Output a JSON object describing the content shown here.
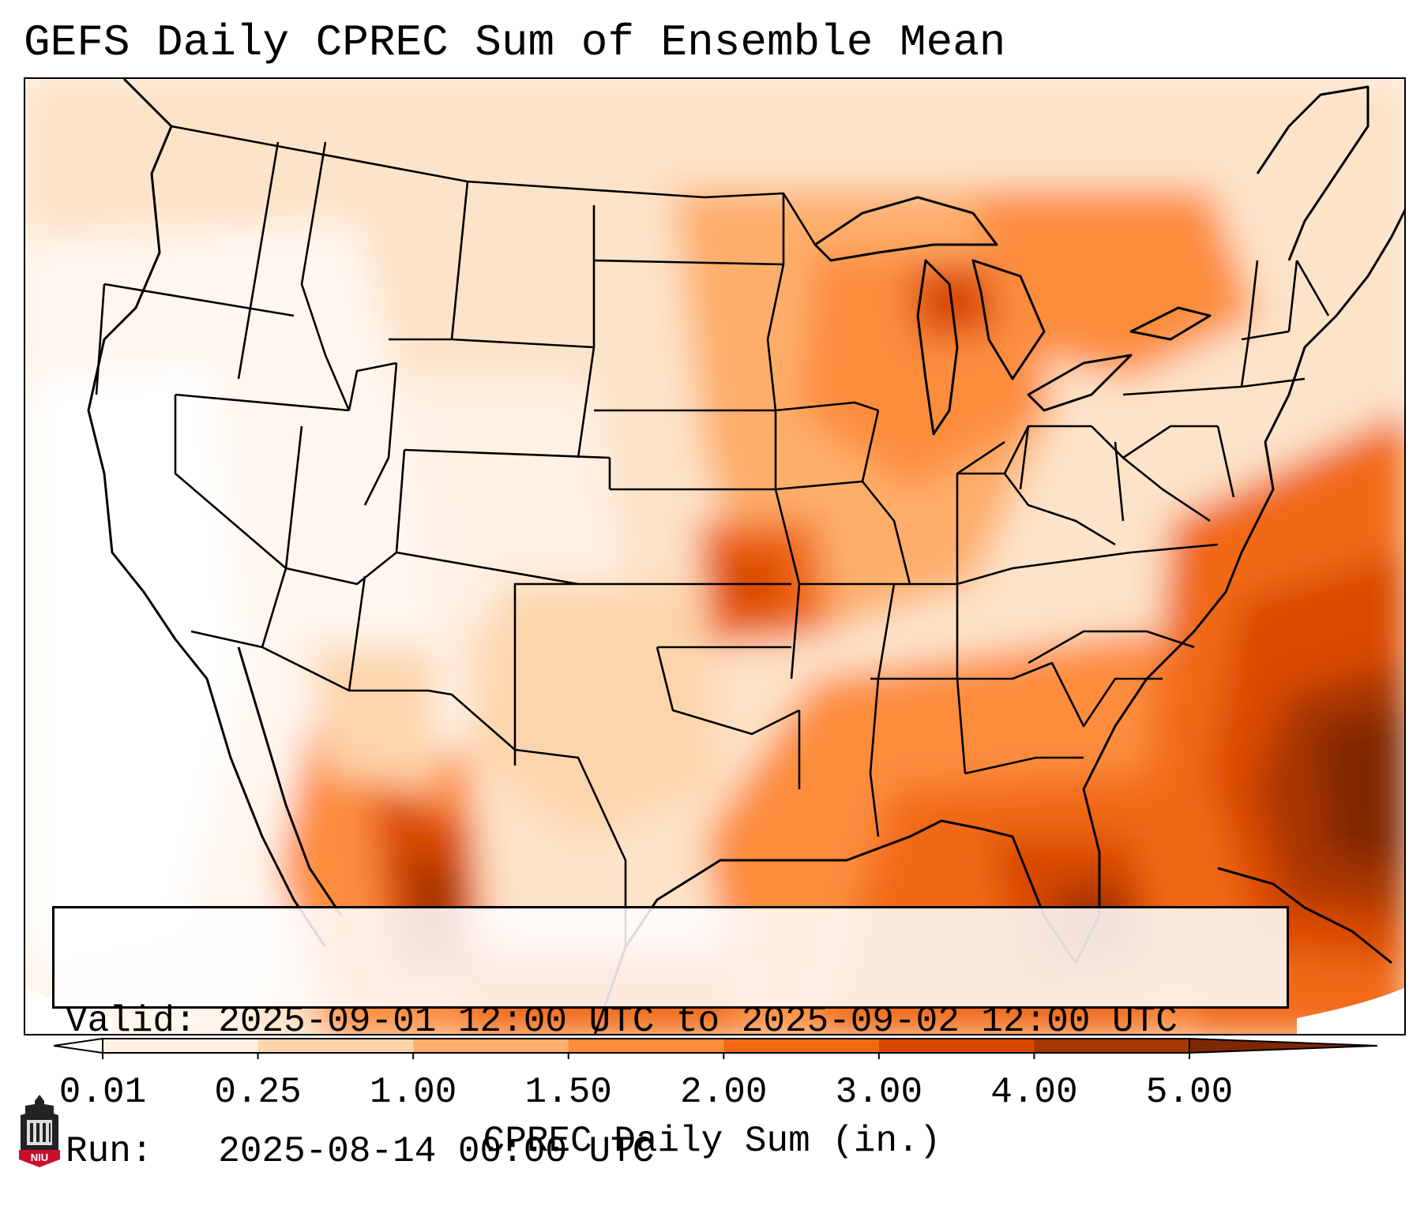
{
  "title": "GEFS Daily CPREC Sum of Ensemble Mean",
  "info": {
    "valid_label": "Valid:",
    "valid_value": "2025-09-01 12:00 UTC to 2025-09-02 12:00 UTC",
    "run_label": "Run:",
    "run_value": "2025-08-14 00:00 UTC"
  },
  "colorbar": {
    "label": "CPREC Daily Sum (in.)",
    "ticks": [
      "0.01",
      "0.25",
      "1.00",
      "1.50",
      "2.00",
      "3.00",
      "4.00",
      "5.00"
    ],
    "colors": {
      "under": "#ffffff",
      "bins": [
        "#fff1e4",
        "#fdd5ac",
        "#fdae6b",
        "#fd8d3c",
        "#f16913",
        "#d94801",
        "#a63603"
      ],
      "over": "#7f2704"
    }
  },
  "logo": {
    "icon": "niu-logo-icon",
    "text": "NIU",
    "colors": {
      "tower": "#222222",
      "badge": "#c8102e"
    }
  }
}
